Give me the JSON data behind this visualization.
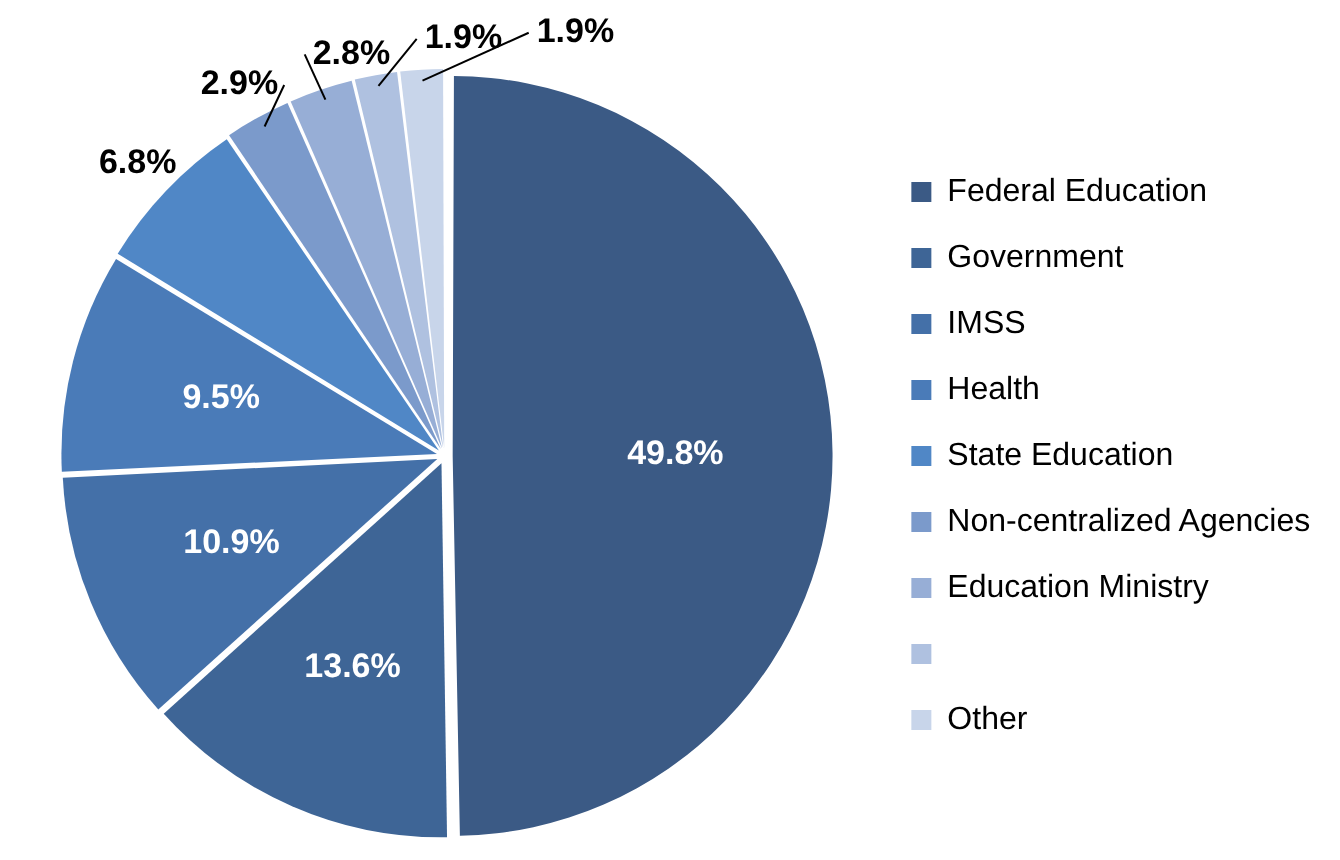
{
  "chart_data": {
    "type": "pie",
    "categories": [
      "Federal Education",
      "Government",
      "IMSS",
      "Health",
      "State Education",
      "Non-centralized Agencies",
      "Education Ministry",
      null,
      "Other"
    ],
    "values": [
      49.8,
      13.6,
      10.9,
      9.5,
      6.8,
      2.9,
      2.8,
      1.9,
      1.9
    ],
    "colors": [
      "#3b5a85",
      "#3e6596",
      "#4470a8",
      "#4a7bb8",
      "#5087c6",
      "#7b9acb",
      "#97aed6",
      "#afc1e0",
      "#c8d5ea"
    ],
    "value_labels": [
      "49.8%",
      "13.6%",
      "10.9%",
      "9.5%",
      "6.8%",
      "2.9%",
      "2.8%",
      "1.9%",
      "1.9%"
    ],
    "legend": "right"
  }
}
